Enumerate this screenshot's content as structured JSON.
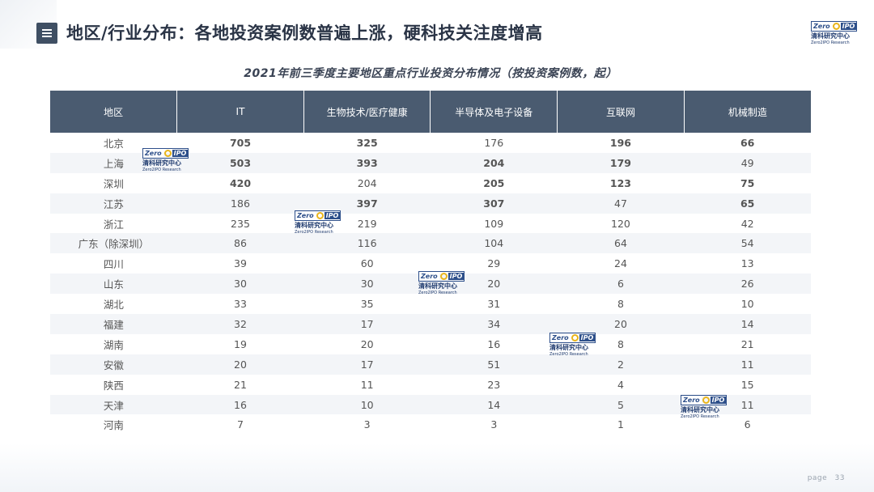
{
  "header": {
    "title": "地区/行业分布：各地投资案例数普遍上涨，硬科技关注度增高",
    "logo_text_en": "Zero IPO",
    "logo_text_cn": "清科研究中心",
    "logo_text_sub": "Zero2IPO Research"
  },
  "table": {
    "caption": "2021年前三季度主要地区重点行业投资分布情况（按投资案例数，起）",
    "columns": [
      "地区",
      "IT",
      "生物技术/医疗健康",
      "半导体及电子设备",
      "互联网",
      "机械制造"
    ],
    "rows": [
      {
        "region": "北京",
        "values": [
          "705",
          "325",
          "176",
          "196",
          "66"
        ],
        "styles": [
          "red",
          "teal",
          "",
          "red",
          "bold"
        ]
      },
      {
        "region": "上海",
        "values": [
          "503",
          "393",
          "204",
          "179",
          "49"
        ],
        "styles": [
          "bold",
          "bold",
          "teal",
          "bold",
          ""
        ]
      },
      {
        "region": "深圳",
        "values": [
          "420",
          "204",
          "205",
          "123",
          "75"
        ],
        "styles": [
          "teal",
          "",
          "bold",
          "teal",
          "red"
        ]
      },
      {
        "region": "江苏",
        "values": [
          "186",
          "397",
          "307",
          "47",
          "65"
        ],
        "styles": [
          "",
          "red",
          "red",
          "",
          "teal"
        ]
      },
      {
        "region": "浙江",
        "values": [
          "235",
          "219",
          "109",
          "120",
          "42"
        ],
        "styles": [
          "",
          "",
          "",
          "",
          ""
        ]
      },
      {
        "region": "广东（除深圳）",
        "values": [
          "86",
          "116",
          "104",
          "64",
          "54"
        ],
        "styles": [
          "",
          "",
          "",
          "",
          ""
        ]
      },
      {
        "region": "四川",
        "values": [
          "39",
          "60",
          "29",
          "24",
          "13"
        ],
        "styles": [
          "",
          "",
          "",
          "",
          ""
        ]
      },
      {
        "region": "山东",
        "values": [
          "30",
          "30",
          "20",
          "6",
          "26"
        ],
        "styles": [
          "",
          "",
          "",
          "",
          ""
        ]
      },
      {
        "region": "湖北",
        "values": [
          "33",
          "35",
          "31",
          "8",
          "10"
        ],
        "styles": [
          "",
          "",
          "",
          "",
          ""
        ]
      },
      {
        "region": "福建",
        "values": [
          "32",
          "17",
          "34",
          "20",
          "14"
        ],
        "styles": [
          "",
          "",
          "",
          "",
          ""
        ]
      },
      {
        "region": "湖南",
        "values": [
          "19",
          "20",
          "16",
          "8",
          "21"
        ],
        "styles": [
          "",
          "",
          "",
          "",
          ""
        ]
      },
      {
        "region": "安徽",
        "values": [
          "20",
          "17",
          "51",
          "2",
          "11"
        ],
        "styles": [
          "",
          "",
          "",
          "",
          ""
        ]
      },
      {
        "region": "陕西",
        "values": [
          "21",
          "11",
          "23",
          "4",
          "15"
        ],
        "styles": [
          "",
          "",
          "",
          "",
          ""
        ]
      },
      {
        "region": "天津",
        "values": [
          "16",
          "10",
          "14",
          "5",
          "11"
        ],
        "styles": [
          "",
          "",
          "",
          "",
          ""
        ]
      },
      {
        "region": "河南",
        "values": [
          "7",
          "3",
          "3",
          "1",
          "6"
        ],
        "styles": [
          "",
          "",
          "",
          "",
          ""
        ]
      }
    ]
  },
  "footer": {
    "page_label": "page",
    "page_number": "33"
  },
  "colors": {
    "header_bg": "#4a5b70",
    "highlight_red": "#b8202a",
    "highlight_teal": "#3aa0b8",
    "logo_blue": "#2d4f8a",
    "logo_yellow": "#e9b51a"
  },
  "icons": {
    "menu": "menu-icon",
    "logo": "zero2ipo-logo"
  }
}
